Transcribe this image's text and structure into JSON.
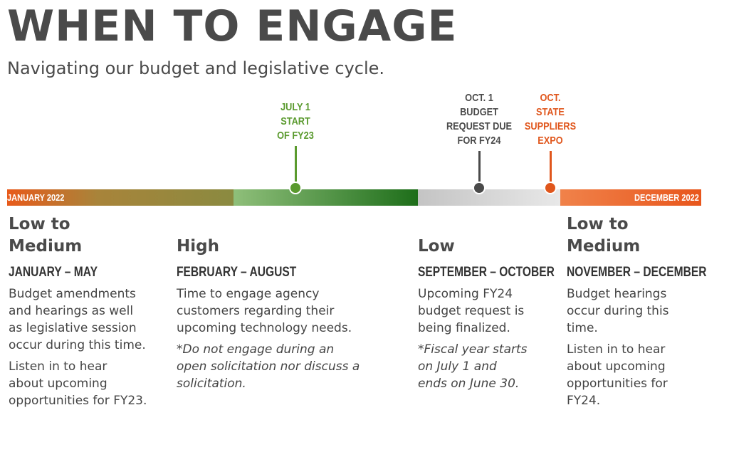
{
  "header": {
    "title": "WHEN TO ENGAGE",
    "subtitle": "Navigating our budget and legislative cycle."
  },
  "timeline": {
    "start_label": "JANUARY 2022",
    "end_label": "DECEMBER 2022",
    "markers": [
      {
        "lines": [
          "JULY 1",
          "START",
          "OF FY23"
        ],
        "color": "#5a9a2e"
      },
      {
        "lines": [
          "OCT. 1",
          "BUDGET",
          "REQUEST DUE",
          "FOR FY24"
        ],
        "color": "#4a4a4a"
      },
      {
        "lines": [
          "OCT.",
          "STATE",
          "SUPPLIERS",
          "EXPO"
        ],
        "color": "#e0561c"
      }
    ]
  },
  "columns": [
    {
      "level": [
        "Low to",
        "Medium"
      ],
      "period": "JANUARY – MAY",
      "paragraphs": [
        {
          "lines": [
            "Budget amendments",
            "and hearings as well",
            "as legislative session",
            "occur during this time."
          ],
          "italic": false
        },
        {
          "lines": [
            "Listen in to hear",
            "about upcoming",
            "opportunities for FY23."
          ],
          "italic": false
        }
      ]
    },
    {
      "level": [
        "High"
      ],
      "period": "FEBRUARY – AUGUST",
      "paragraphs": [
        {
          "lines": [
            "Time to engage agency",
            "customers regarding their",
            "upcoming technology needs."
          ],
          "italic": false
        },
        {
          "lines": [
            "*Do not engage during an",
            "open solicitation nor discuss a",
            "solicitation."
          ],
          "italic": true
        }
      ]
    },
    {
      "level": [
        "Low"
      ],
      "period": "SEPTEMBER – OCTOBER",
      "paragraphs": [
        {
          "lines": [
            "Upcoming FY24",
            "budget request is",
            "being finalized."
          ],
          "italic": false
        },
        {
          "lines": [
            "*Fiscal year starts",
            "on July 1 and",
            "ends on June 30."
          ],
          "italic": true
        }
      ]
    },
    {
      "level": [
        "Low to",
        "Medium"
      ],
      "period": "NOVEMBER – DECEMBER",
      "paragraphs": [
        {
          "lines": [
            "Budget hearings",
            "occur during this",
            "time."
          ],
          "italic": false
        },
        {
          "lines": [
            "Listen in to hear",
            "about upcoming",
            "opportunities for",
            "FY24."
          ],
          "italic": false
        }
      ]
    }
  ]
}
